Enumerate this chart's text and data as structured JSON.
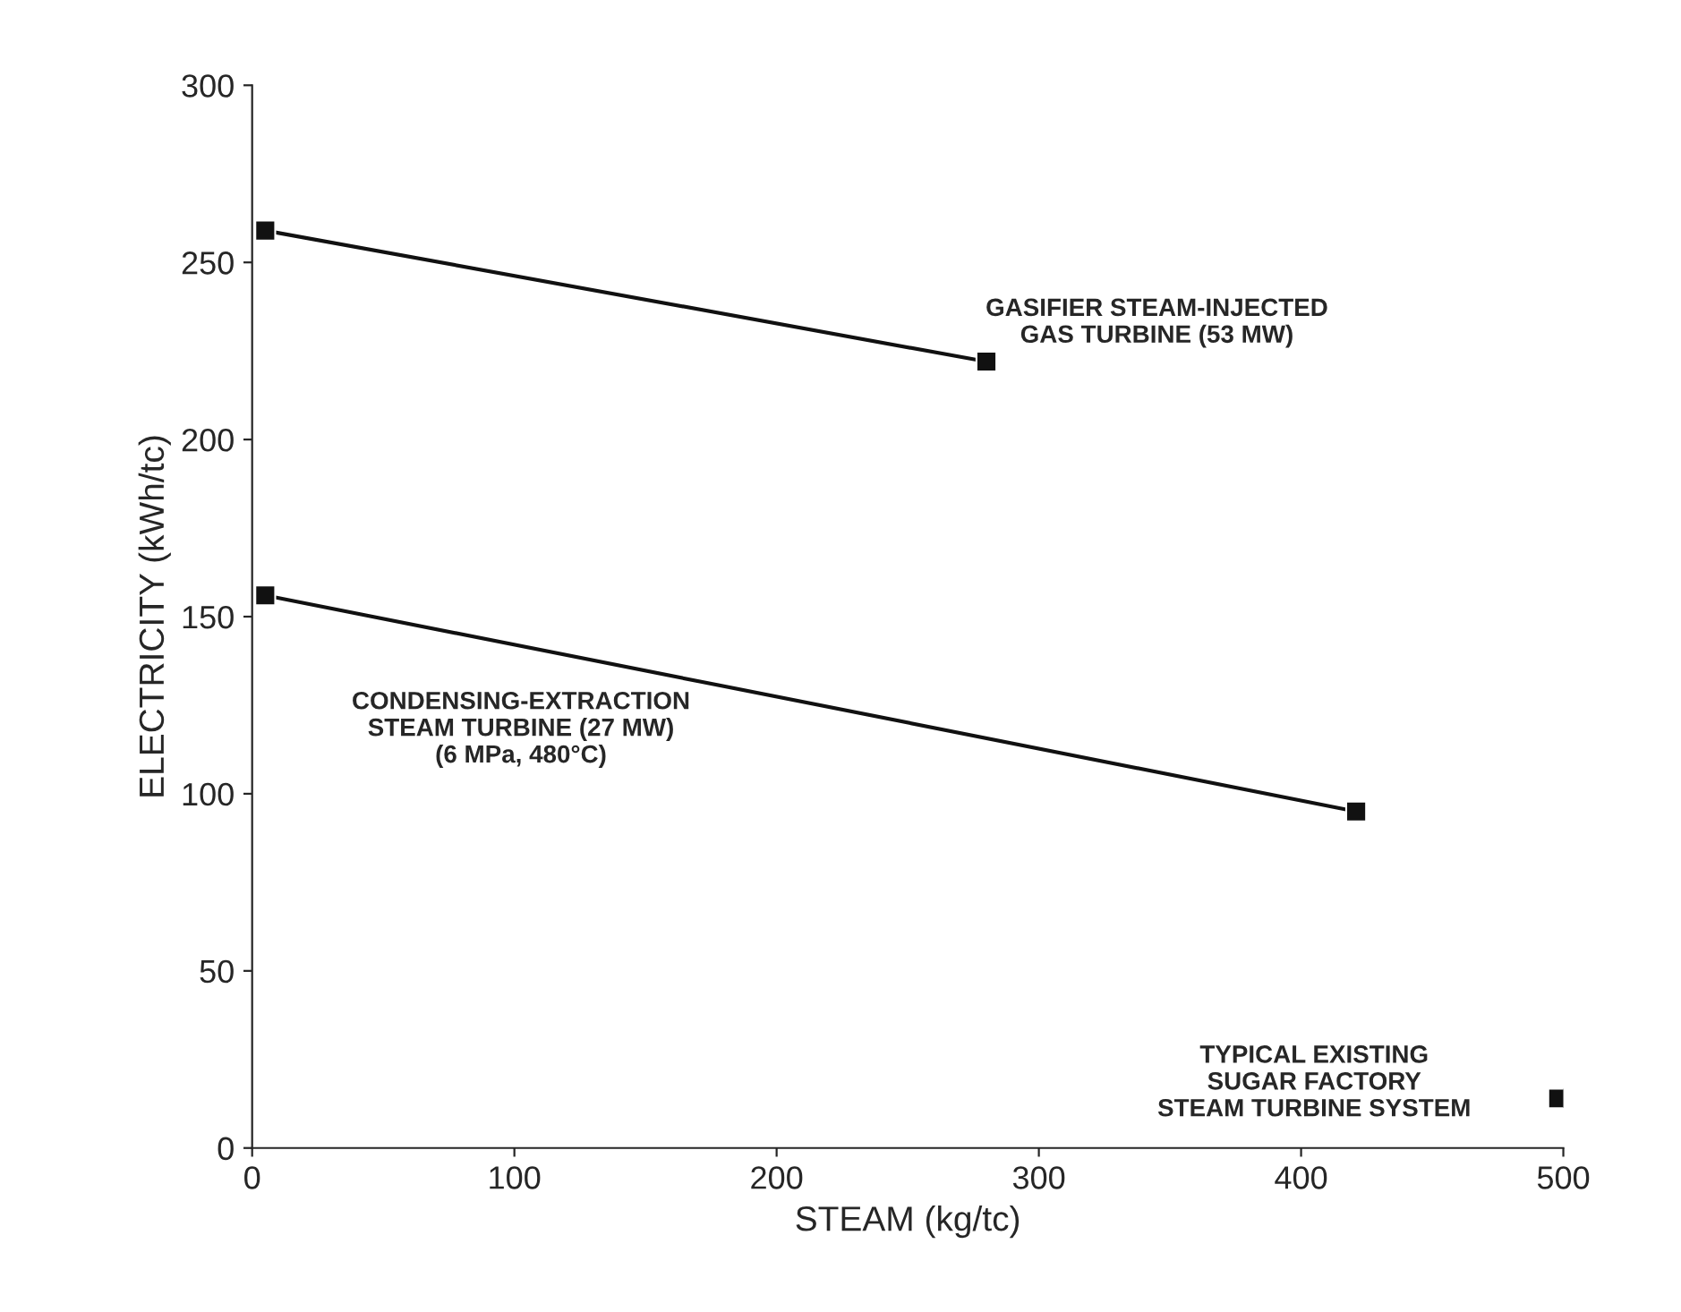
{
  "chart_data": {
    "type": "line",
    "xlabel": "STEAM (kg/tc)",
    "ylabel": "ELECTRICITY (kWh/tc)",
    "series": [
      {
        "color": "#111111",
        "x": [
          5,
          280
        ],
        "values": [
          259,
          222
        ]
      },
      {
        "color": "#111111",
        "x": [
          5,
          421
        ],
        "values": [
          156,
          95
        ]
      },
      {
        "color": "#111111",
        "x": [
          498
        ],
        "values": [
          14
        ],
        "type": "scatter"
      }
    ],
    "annotations": [
      "GASIFIER STEAM-INJECTED\nGAS TURBINE (53 MW)",
      "CONDENSING-EXTRACTION\nSTEAM TURBINE (27 MW)\n(6 MPa, 480°C)",
      "TYPICAL EXISTING\nSUGAR FACTORY\nSTEAM TURBINE SYSTEM"
    ],
    "xlim": [
      0,
      500
    ],
    "xticks": [
      0,
      100,
      200,
      300,
      400,
      500
    ],
    "ylim": [
      0,
      300
    ],
    "yticks": [
      0,
      50,
      100,
      150,
      200,
      250,
      300
    ],
    "grid": false,
    "legend": false,
    "marker": "square",
    "line_style": "solid"
  }
}
